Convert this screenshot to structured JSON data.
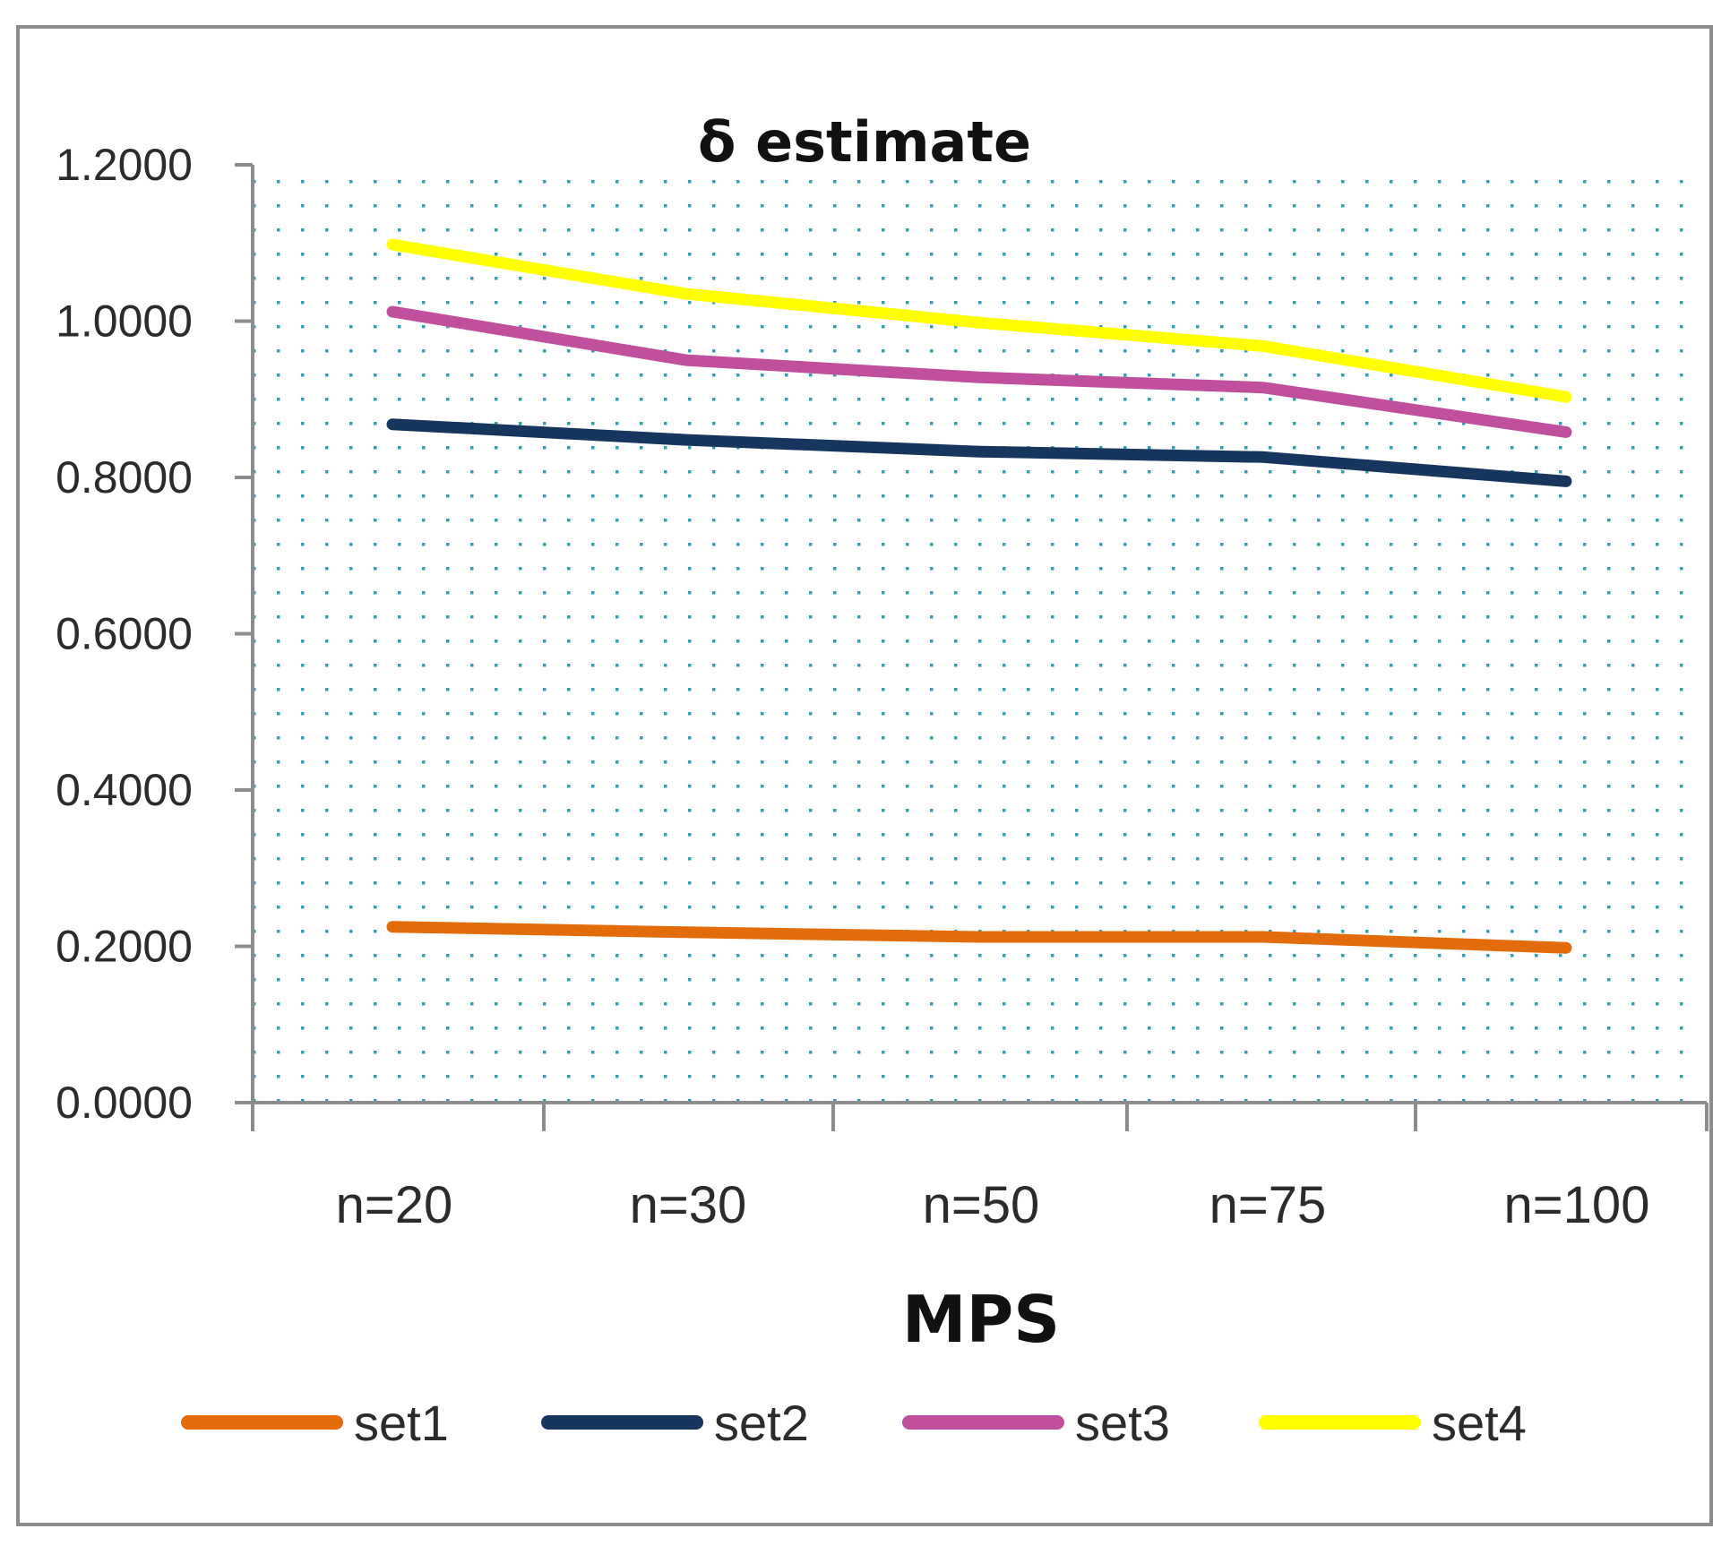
{
  "chart_data": {
    "type": "line",
    "title": "δ estimate",
    "xlabel": "MPS",
    "ylabel": "",
    "categories": [
      "n=20",
      "n=30",
      "n=50",
      "n=75",
      "n=100"
    ],
    "ylim": [
      0,
      1.2
    ],
    "yticks": [
      "0.0000",
      "0.2000",
      "0.4000",
      "0.6000",
      "0.8000",
      "1.0000",
      "1.2000"
    ],
    "ytick_values": [
      0,
      0.2,
      0.4,
      0.6,
      0.8,
      1.0,
      1.2
    ],
    "grid": "dotted",
    "legend_position": "bottom",
    "series": [
      {
        "name": "set1",
        "color": "#e36c0a",
        "values": [
          0.225,
          0.218,
          0.212,
          0.212,
          0.198
        ]
      },
      {
        "name": "set2",
        "color": "#17365d",
        "values": [
          0.868,
          0.848,
          0.833,
          0.826,
          0.795
        ]
      },
      {
        "name": "set3",
        "color": "#c0509e",
        "values": [
          1.012,
          0.95,
          0.928,
          0.915,
          0.858
        ]
      },
      {
        "name": "set4",
        "color": "#ffff00",
        "values": [
          1.098,
          1.035,
          0.998,
          0.968,
          0.903
        ]
      }
    ],
    "plot_background": "#ffffff",
    "grid_color": "#31a0b5"
  }
}
